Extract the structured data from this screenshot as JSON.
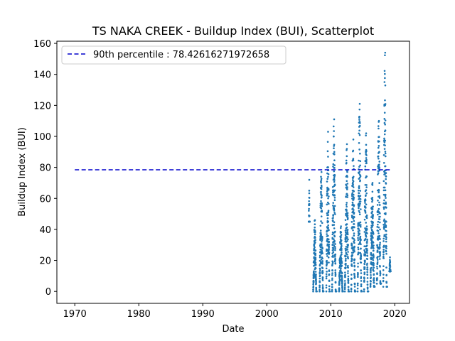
{
  "chart_data": {
    "type": "scatter",
    "title": "TS NAKA CREEK - Buildup Index (BUI), Scatterplot",
    "xlabel": "Date",
    "ylabel": "Buildup Index (BUI)",
    "xlim": [
      1967.2,
      2022.3
    ],
    "ylim": [
      -7.7,
      161.4
    ],
    "xticks": [
      1970,
      1980,
      1990,
      2000,
      2010,
      2020
    ],
    "yticks": [
      0,
      20,
      40,
      60,
      80,
      100,
      120,
      140,
      160
    ],
    "grid": false,
    "legend_position": "top-left",
    "reference_line": {
      "label": "90th percentile : 78.42616271972658",
      "y": 78.42616271972658,
      "x_range": [
        1970,
        2019.5
      ],
      "style": "dashed",
      "color": "#0000cc"
    },
    "series": [
      {
        "marker_color": "#1f77b4",
        "seasons": [
          {
            "year_start": 2006.55,
            "year_end": 2006.72,
            "peak": 72,
            "low": 45
          },
          {
            "year_start": 2007.25,
            "year_end": 2007.8,
            "peak": 46,
            "low": 0
          },
          {
            "year_start": 2008.25,
            "year_end": 2008.85,
            "peak": 77,
            "low": 0
          },
          {
            "year_start": 2009.3,
            "year_end": 2009.85,
            "peak": 103,
            "low": 0
          },
          {
            "year_start": 2010.2,
            "year_end": 2010.85,
            "peak": 111,
            "low": 0
          },
          {
            "year_start": 2011.3,
            "year_end": 2011.9,
            "peak": 42,
            "low": 0
          },
          {
            "year_start": 2012.2,
            "year_end": 2012.85,
            "peak": 95,
            "low": 0
          },
          {
            "year_start": 2013.2,
            "year_end": 2013.85,
            "peak": 98,
            "low": 0
          },
          {
            "year_start": 2014.2,
            "year_end": 2014.85,
            "peak": 121,
            "low": 0
          },
          {
            "year_start": 2015.2,
            "year_end": 2015.85,
            "peak": 102,
            "low": 0
          },
          {
            "year_start": 2016.2,
            "year_end": 2016.85,
            "peak": 70,
            "low": 3
          },
          {
            "year_start": 2017.2,
            "year_end": 2017.85,
            "peak": 110,
            "low": 5
          },
          {
            "year_start": 2018.2,
            "year_end": 2018.8,
            "peak": 154,
            "low": 3
          },
          {
            "year_start": 2019.15,
            "year_end": 2019.35,
            "peak": 22,
            "low": 13
          }
        ]
      }
    ]
  }
}
